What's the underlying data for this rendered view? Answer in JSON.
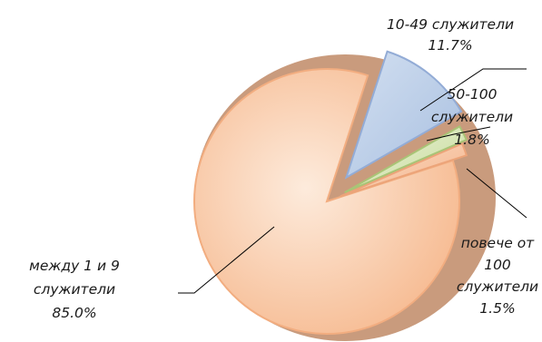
{
  "chart_data": {
    "type": "pie",
    "title": "",
    "categories": [
      "между 1 и 9 служители",
      "10-49 служители",
      "50-100 служители",
      "повече от 100 служители"
    ],
    "values": [
      85.0,
      11.7,
      1.8,
      1.5
    ],
    "value_labels": [
      "85.0%",
      "11.7%",
      "1.8%",
      "1.5%"
    ],
    "label_lines": [
      [
        "между 1 и 9",
        "служители"
      ],
      [
        "10-49 служители"
      ],
      [
        "50-100",
        "служители"
      ],
      [
        "повече от",
        "100",
        "служители"
      ]
    ],
    "colors": [
      "#f9c9a6",
      "#b9cce6",
      "#cfe0a9",
      "#f6bf97"
    ],
    "legend": "none",
    "style": "3d-exploded"
  }
}
